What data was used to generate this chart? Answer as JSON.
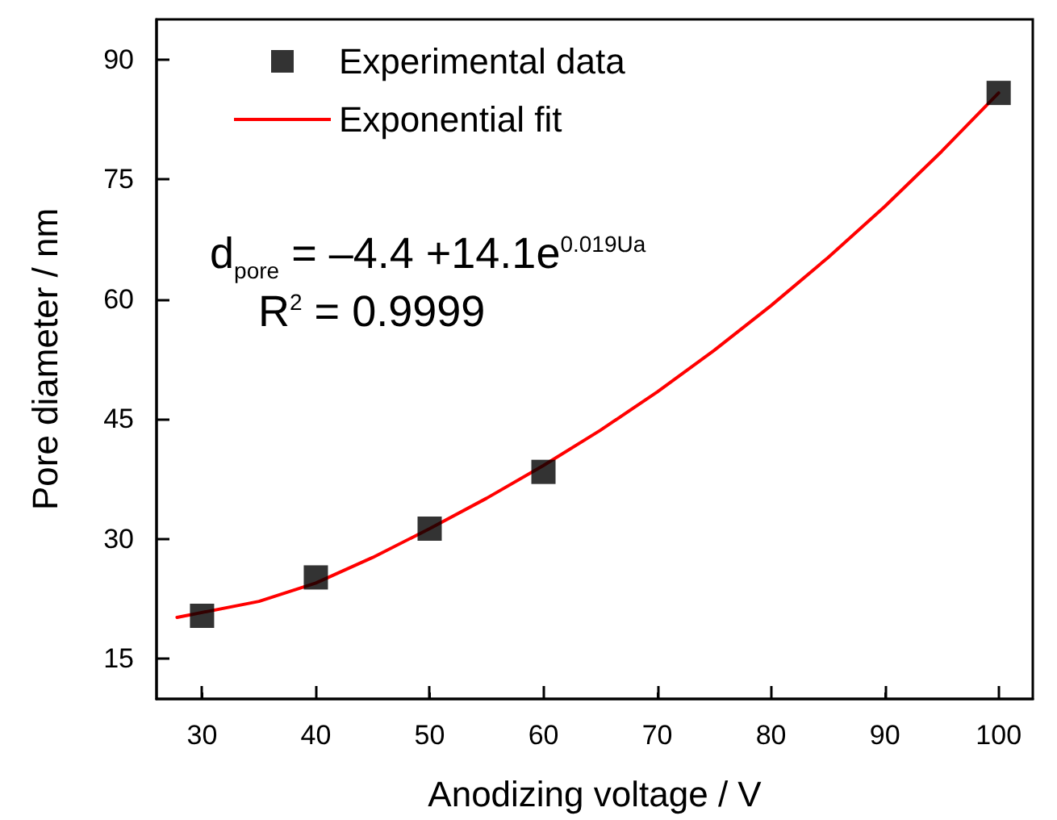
{
  "chart_data": {
    "type": "scatter",
    "xlabel": "Anodizing voltage / V",
    "ylabel": "Pore diameter / nm",
    "xlim": [
      26,
      103
    ],
    "xticks": [
      30,
      40,
      50,
      60,
      70,
      80,
      90,
      100
    ],
    "ylim": [
      10,
      95
    ],
    "yticks": [
      15,
      30,
      45,
      60,
      75,
      90
    ],
    "legend": "top left",
    "annotations": [
      "d$_{pore}$ = –4.4 +14.1e$^{0.019Ua}$",
      "R$^{2}$ = 0.9999"
    ],
    "series": [
      {
        "name": "Experimental data",
        "type": "scatter",
        "marker": "square",
        "color": "#000000",
        "x": [
          30,
          40,
          50,
          60,
          100
        ],
        "values": [
          20.4,
          25.2,
          31.3,
          38.4,
          85.8
        ]
      },
      {
        "name": "Exponential fit",
        "type": "line",
        "marker": "none",
        "line_style": "solid",
        "color": "#ff0000",
        "x": [
          27.8,
          35,
          40,
          45,
          50,
          55,
          60,
          65,
          70,
          75,
          80,
          85,
          90,
          95,
          100
        ],
        "values": [
          20.2,
          22.2,
          24.5,
          27.7,
          31.3,
          35.1,
          39.2,
          43.6,
          48.4,
          53.6,
          59.2,
          65.2,
          71.6,
          78.5,
          85.8
        ]
      }
    ]
  }
}
